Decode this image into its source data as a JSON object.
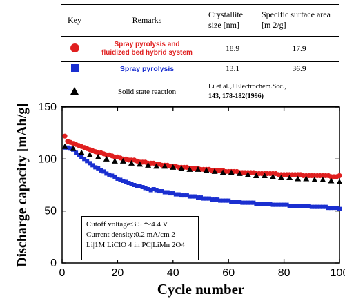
{
  "table": {
    "headers": [
      "Key",
      "Remarks",
      "Crystallite size [nm]",
      "Specific surface area [m 2/g]"
    ],
    "rows": [
      {
        "symbol": "red-circle",
        "remarks": [
          "Spray pyrolysis and",
          "fluidized bed hybrid system"
        ],
        "crystallite": "18.9",
        "surface": "17.9"
      },
      {
        "symbol": "blue-square",
        "remarks": [
          "Spray pyrolysis"
        ],
        "crystallite": "13.1",
        "surface": "36.9"
      },
      {
        "symbol": "black-triangle",
        "remarks": [
          "Solid state reaction"
        ],
        "reference": [
          "Li et al.,J.Electrochem.Soc.,",
          "143, 178-182(1996)"
        ]
      }
    ]
  },
  "conditions": [
    "Cutoff voltage:3.5 ～4.4 V",
    "Current density:0.2 mA/cm 2",
    "Li|1M LiClO 4 in PC|LiMn 2O4"
  ],
  "colors": {
    "red": "#e01f1f",
    "blue": "#1a2fd0",
    "black": "#000000"
  },
  "chart_data": {
    "type": "scatter",
    "xlabel": "Cycle number",
    "ylabel": "Discharge capacity [mAh/g]",
    "xlim": [
      0,
      100
    ],
    "ylim": [
      0,
      150
    ],
    "xticks": [
      0,
      20,
      40,
      60,
      80,
      100
    ],
    "yticks": [
      0,
      50,
      100,
      150
    ],
    "grid": false,
    "series": [
      {
        "name": "Spray pyrolysis and fluidized bed hybrid system",
        "color": "#e01f1f",
        "marker": "circle",
        "x": [
          1,
          2,
          3,
          4,
          5,
          6,
          7,
          8,
          9,
          10,
          11,
          12,
          13,
          14,
          15,
          16,
          17,
          18,
          19,
          20,
          21,
          22,
          23,
          24,
          25,
          26,
          27,
          28,
          29,
          30,
          31,
          32,
          33,
          34,
          35,
          36,
          37,
          38,
          39,
          40,
          41,
          42,
          43,
          44,
          45,
          46,
          47,
          48,
          49,
          50,
          51,
          52,
          53,
          54,
          55,
          56,
          57,
          58,
          59,
          60,
          61,
          62,
          63,
          64,
          65,
          66,
          67,
          68,
          69,
          70,
          71,
          72,
          73,
          74,
          75,
          76,
          77,
          78,
          79,
          80,
          81,
          82,
          83,
          84,
          85,
          86,
          87,
          88,
          89,
          90,
          91,
          92,
          93,
          94,
          95,
          96,
          97,
          98,
          99,
          100
        ],
        "y": [
          122,
          117,
          116,
          115,
          114,
          113,
          112,
          111,
          110,
          109,
          108,
          107,
          106,
          106,
          105,
          104,
          104,
          103,
          102,
          102,
          101,
          100,
          100,
          99,
          99,
          99,
          98,
          97,
          97,
          97,
          96,
          96,
          96,
          95,
          95,
          94,
          94,
          94,
          93,
          93,
          93,
          92,
          92,
          92,
          92,
          91,
          91,
          91,
          91,
          90,
          90,
          90,
          90,
          89,
          89,
          89,
          89,
          89,
          88,
          88,
          88,
          88,
          88,
          87,
          87,
          87,
          87,
          87,
          87,
          86,
          86,
          86,
          86,
          86,
          86,
          86,
          86,
          85,
          85,
          85,
          85,
          85,
          85,
          85,
          85,
          85,
          84,
          84,
          84,
          84,
          84,
          84,
          84,
          84,
          84,
          84,
          83,
          83,
          83,
          84
        ]
      },
      {
        "name": "Spray pyrolysis",
        "color": "#1a2fd0",
        "marker": "square",
        "x": [
          1,
          2,
          3,
          4,
          5,
          6,
          7,
          8,
          9,
          10,
          11,
          12,
          13,
          14,
          15,
          16,
          17,
          18,
          19,
          20,
          21,
          22,
          23,
          24,
          25,
          26,
          27,
          28,
          29,
          30,
          31,
          32,
          33,
          34,
          35,
          36,
          37,
          38,
          39,
          40,
          41,
          42,
          43,
          44,
          45,
          46,
          47,
          48,
          49,
          50,
          51,
          52,
          53,
          54,
          55,
          56,
          57,
          58,
          59,
          60,
          61,
          62,
          63,
          64,
          65,
          66,
          67,
          68,
          69,
          70,
          71,
          72,
          73,
          74,
          75,
          76,
          77,
          78,
          79,
          80,
          81,
          82,
          83,
          84,
          85,
          86,
          87,
          88,
          89,
          90,
          91,
          92,
          93,
          94,
          95,
          96,
          97,
          98,
          99,
          100
        ],
        "y": [
          111,
          111,
          110,
          109,
          106,
          104,
          102,
          100,
          98,
          96,
          94,
          92,
          91,
          89,
          88,
          86,
          85,
          84,
          83,
          81,
          80,
          79,
          78,
          77,
          76,
          75,
          74,
          74,
          73,
          72,
          71,
          70,
          71,
          70,
          69,
          69,
          68,
          68,
          67,
          67,
          66,
          66,
          65,
          65,
          65,
          64,
          64,
          64,
          63,
          63,
          62,
          62,
          62,
          61,
          61,
          61,
          60,
          60,
          60,
          60,
          59,
          59,
          59,
          59,
          58,
          58,
          58,
          58,
          58,
          57,
          57,
          57,
          57,
          57,
          57,
          56,
          56,
          56,
          56,
          56,
          56,
          55,
          55,
          55,
          55,
          55,
          55,
          55,
          55,
          54,
          54,
          54,
          54,
          54,
          54,
          53,
          53,
          53,
          53,
          52
        ]
      },
      {
        "name": "Solid state reaction",
        "color": "#000000",
        "marker": "triangle",
        "x": [
          1,
          4,
          7,
          10,
          13,
          16,
          19,
          22,
          25,
          28,
          31,
          34,
          37,
          40,
          43,
          46,
          49,
          52,
          55,
          58,
          61,
          64,
          67,
          70,
          73,
          76,
          79,
          82,
          85,
          88,
          91,
          94,
          97,
          100
        ],
        "y": [
          112,
          110,
          106,
          104,
          102,
          100,
          98,
          98,
          96,
          95,
          94,
          93,
          93,
          92,
          91,
          90,
          90,
          89,
          88,
          87,
          87,
          86,
          85,
          84,
          84,
          83,
          82,
          82,
          81,
          81,
          80,
          80,
          79,
          78
        ]
      }
    ]
  }
}
